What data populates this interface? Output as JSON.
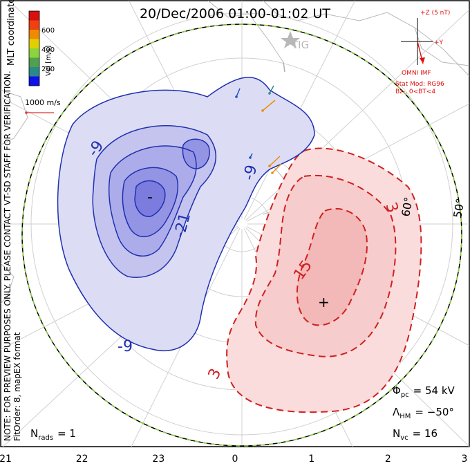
{
  "title": "20/Dec/2006 01:00-01:02 UT",
  "side_labels": {
    "coords": "MLT coordinates",
    "note": "NOTE: FOR PREVIEW PURPOSES ONLY. PLEASE CONTACT VT-SD STAFF FOR VERIFICATION.",
    "fit": "FitOrder: 8, mapEX format"
  },
  "colorbar": {
    "label": "Vel [m/s]",
    "ticks": [
      "600",
      "400",
      "200"
    ],
    "colors": [
      "#1010e8",
      "#2a8a8a",
      "#50a050",
      "#8cd43c",
      "#e0d000",
      "#f08a00",
      "#f04010",
      "#d81010"
    ]
  },
  "reference_vector": {
    "label": "1000 m/s",
    "color": "#e03030"
  },
  "imf": {
    "z_label": "+Z (5 nT)",
    "y_label": "+Y",
    "caption": "OMNI IMF",
    "model_line1": "Stat Mod: RG96",
    "model_line2": "Bz-, 0<BT<4",
    "color": "#e01010"
  },
  "station": {
    "name": "TIG"
  },
  "latitude_labels": [
    "60°",
    "50°"
  ],
  "contours": {
    "negative_color": "#2030b0",
    "positive_color": "#d02020",
    "labels": [
      "-9",
      "-9",
      "-21",
      "-9",
      "-",
      "15",
      "3",
      "3",
      "+"
    ]
  },
  "stats": {
    "phi_symbol": "Φ",
    "phi_sub": "pc",
    "phi_value": "= 54 kV",
    "lambda_symbol": "Λ",
    "lambda_sub": "HM",
    "lambda_value": "= −50°",
    "nvc_symbol": "N",
    "nvc_sub": "vc",
    "nvc_value": "= 16",
    "nrads_symbol": "N",
    "nrads_sub": "rads",
    "nrads_value": "= 1"
  },
  "mlt_axis": [
    "21",
    "22",
    "23",
    "0",
    "1",
    "2",
    "3"
  ]
}
